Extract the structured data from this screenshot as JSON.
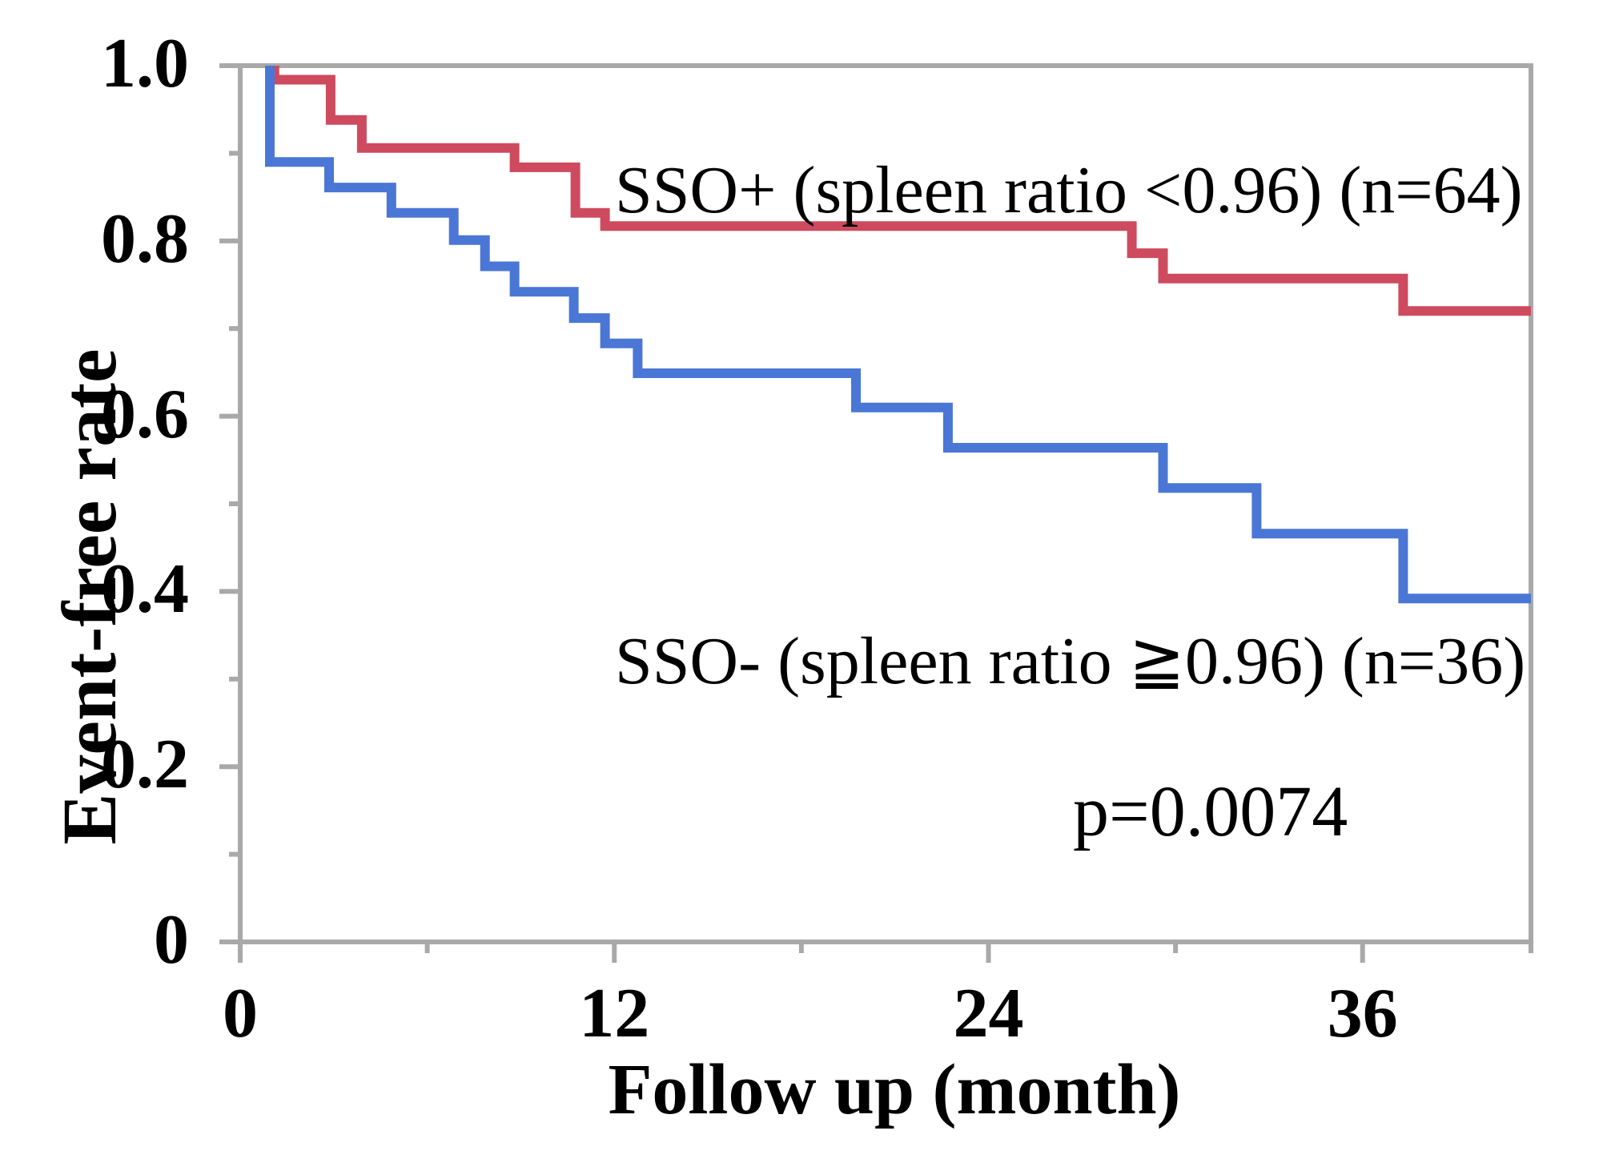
{
  "figure": {
    "background_color": "#FFFFFF",
    "frame_color": "#A9A9A9",
    "text_color": "#000000"
  },
  "chart_data": {
    "type": "line",
    "subtype": "kaplan_meier_step",
    "title": "",
    "xlabel": "Follow up (month)",
    "ylabel": "Event-free rate",
    "xlim": [
      0,
      41.4
    ],
    "ylim": [
      0,
      1.0
    ],
    "x_ticks_major": [
      0,
      12,
      24,
      36
    ],
    "x_tick_labels": [
      "0",
      "12",
      "24",
      "36"
    ],
    "x_ticks_minor": [
      6,
      18,
      30
    ],
    "y_ticks_major": [
      1.0,
      0.8,
      0.6,
      0.4,
      0.2,
      0
    ],
    "y_tick_labels": [
      "1.0",
      "0.8",
      "0.6",
      "0.4",
      "0.2",
      "0"
    ],
    "y_ticks_minor": [
      0.9,
      0.7,
      0.5,
      0.3,
      0.1
    ],
    "grid": false,
    "legend_position": "inline-annotations",
    "series": [
      {
        "name": "SSO+",
        "label": "SSO+ (spleen ratio <0.96) (n=64)",
        "n": 64,
        "color": "#CE4A5E",
        "points_time_survival": [
          [
            1.1,
            1.0
          ],
          [
            1.1,
            0.984
          ],
          [
            2.9,
            0.938
          ],
          [
            3.9,
            0.906
          ],
          [
            8.8,
            0.884
          ],
          [
            10.75,
            0.832
          ],
          [
            11.7,
            0.817
          ],
          [
            28.6,
            0.786
          ],
          [
            29.6,
            0.757
          ],
          [
            37.3,
            0.72
          ]
        ],
        "end_time": 41.4
      },
      {
        "name": "SSO-",
        "label": "SSO- (spleen ratio ≧0.96) (n=36)",
        "n": 36,
        "color": "#4A76D6",
        "points_time_survival": [
          [
            0.95,
            1.0
          ],
          [
            0.95,
            0.89
          ],
          [
            2.85,
            0.861
          ],
          [
            4.85,
            0.832
          ],
          [
            6.85,
            0.801
          ],
          [
            7.85,
            0.771
          ],
          [
            8.8,
            0.742
          ],
          [
            10.7,
            0.712
          ],
          [
            11.7,
            0.683
          ],
          [
            12.75,
            0.649
          ],
          [
            19.75,
            0.61
          ],
          [
            22.7,
            0.564
          ],
          [
            29.6,
            0.518
          ],
          [
            32.6,
            0.466
          ],
          [
            37.3,
            0.392
          ]
        ],
        "end_time": 41.4
      }
    ],
    "annotations": [
      {
        "id": "p_value",
        "text": "p=0.0074"
      }
    ]
  }
}
